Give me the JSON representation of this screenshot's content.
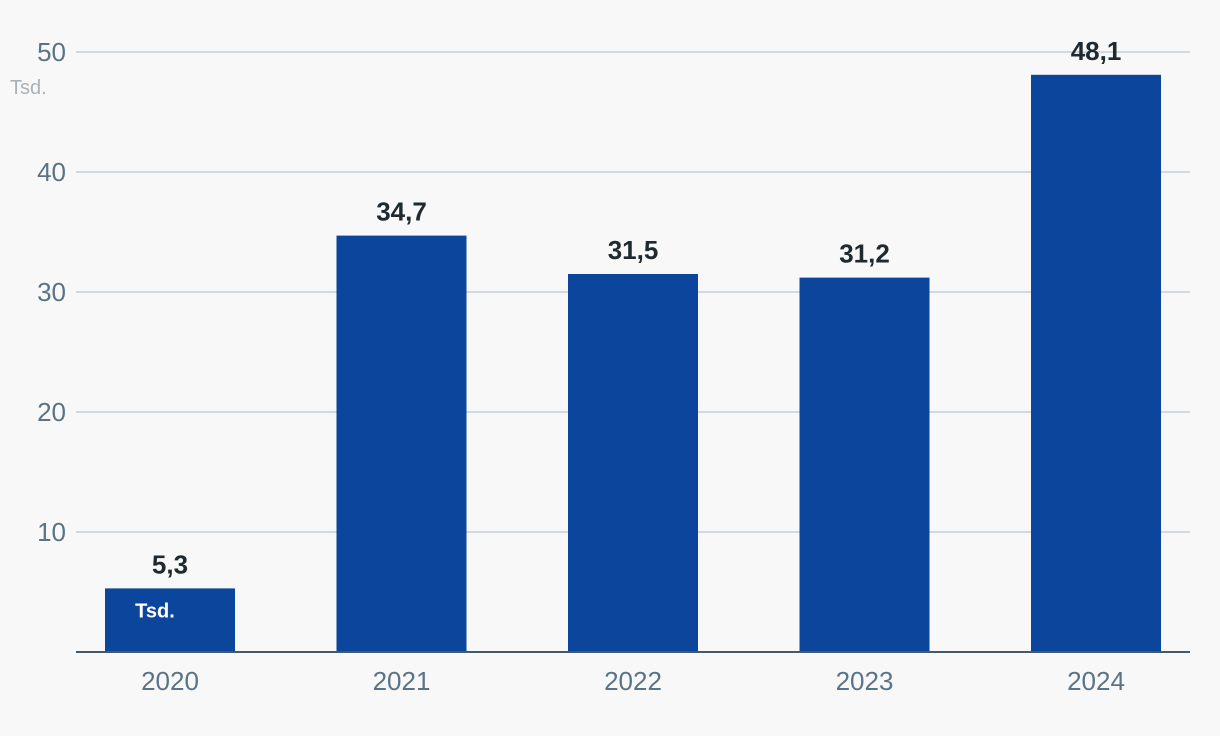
{
  "chart_data": {
    "type": "bar",
    "categories": [
      "2020",
      "2021",
      "2022",
      "2023",
      "2024"
    ],
    "values": [
      5.3,
      34.7,
      31.5,
      31.2,
      48.1
    ],
    "value_labels": [
      "5,3",
      "34,7",
      "31,5",
      "31,2",
      "48,1"
    ],
    "unit_label": "Tsd.",
    "yticks": [
      10,
      20,
      30,
      40,
      50
    ],
    "ylim": [
      0,
      50
    ],
    "grid": true,
    "bar_color": "#0b469c"
  }
}
